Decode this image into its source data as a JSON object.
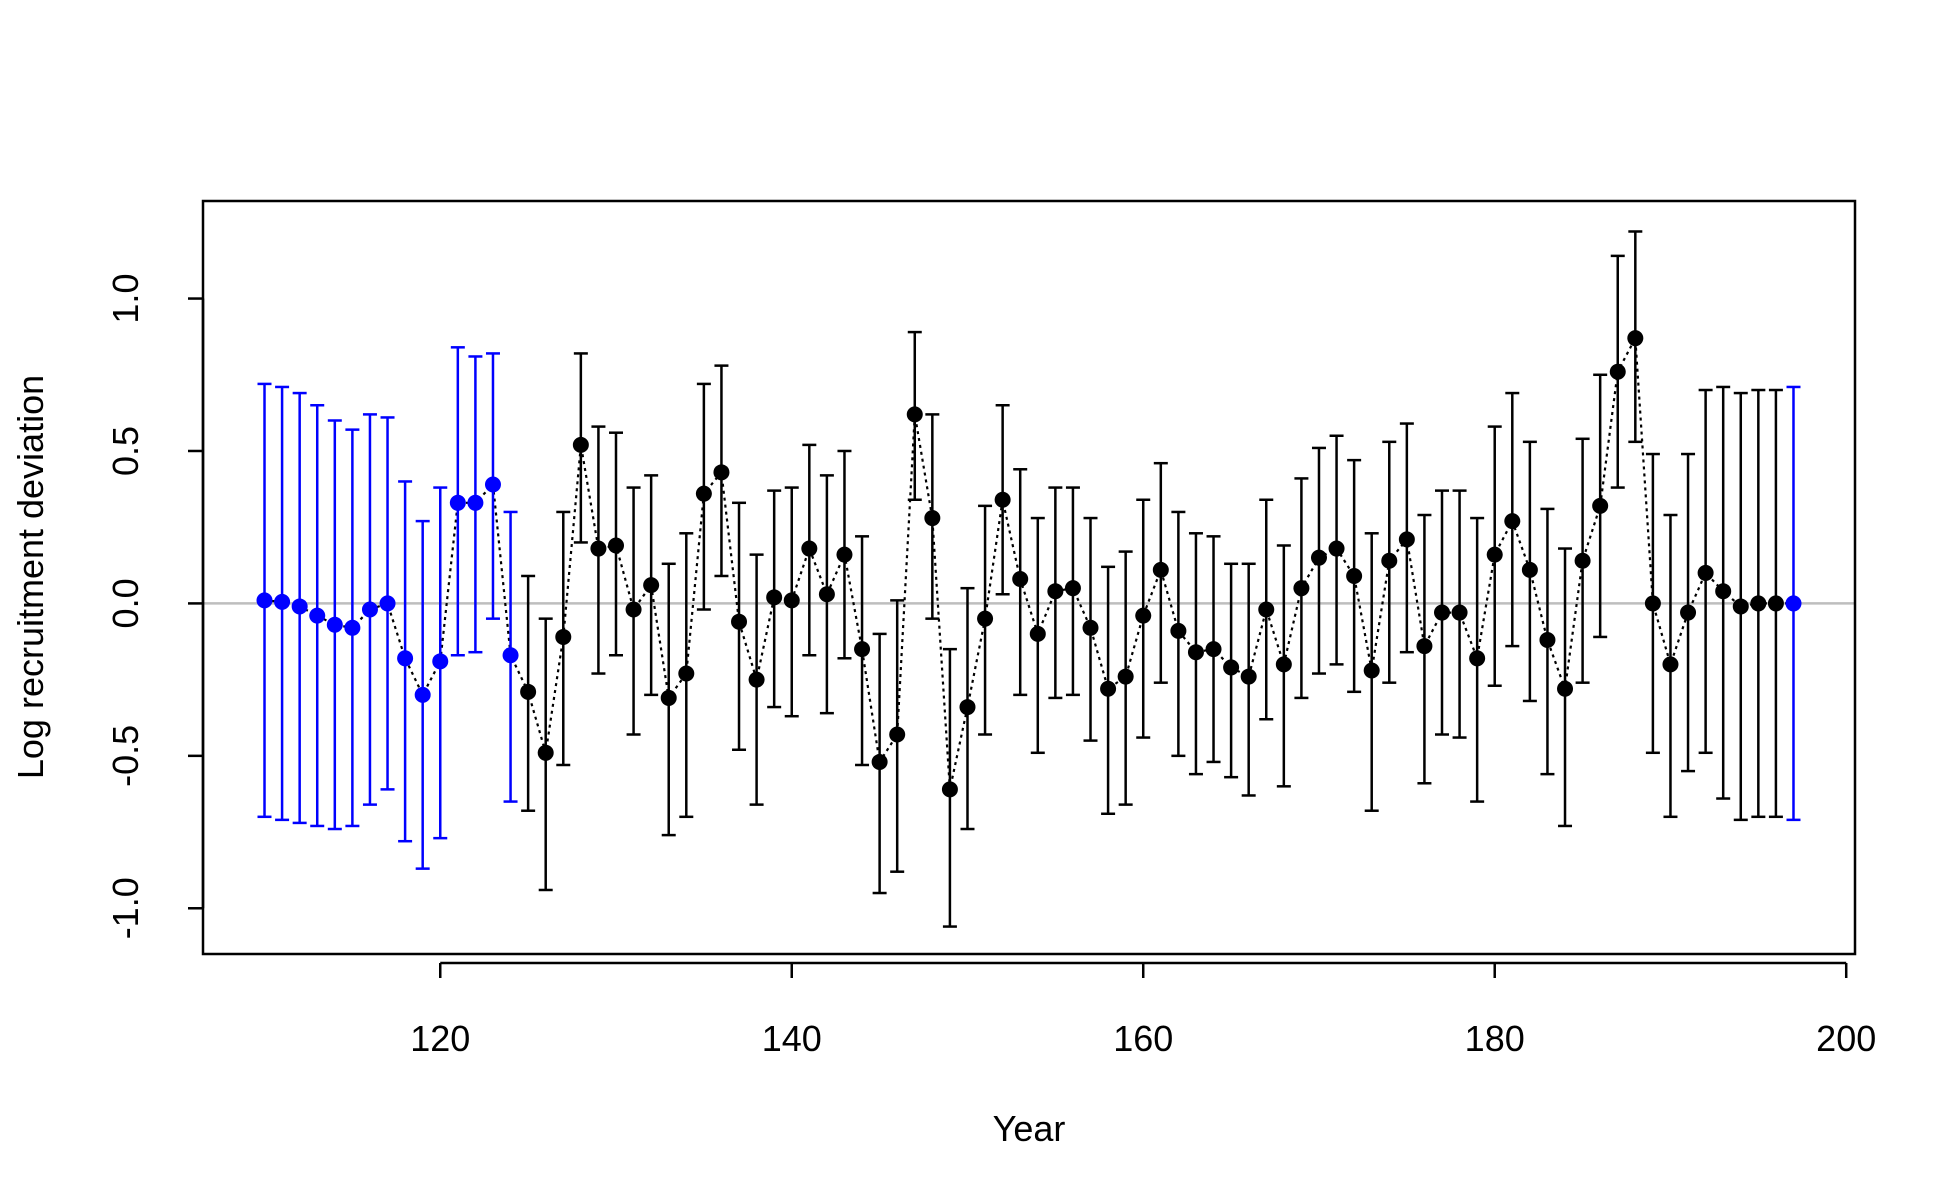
{
  "chart_data": {
    "type": "scatter",
    "xlabel": "Year",
    "ylabel": "Log recruitment deviation",
    "xlim": [
      106.5,
      200.5
    ],
    "ylim": [
      -1.15,
      1.32
    ],
    "x_ticks": [
      120,
      140,
      160,
      180,
      200
    ],
    "x_tick_labels": [
      "120",
      "140",
      "160",
      "180",
      "200"
    ],
    "y_ticks": [
      -1.0,
      -0.5,
      0.0,
      0.5,
      1.0
    ],
    "y_tick_labels": [
      "-1.0",
      "-0.5",
      "0.0",
      "0.5",
      "1.0"
    ],
    "reference_line": {
      "y": 0.0,
      "color": "#bebebe"
    },
    "grid": false,
    "colors": {
      "early": "#0000ff",
      "main": "#000000"
    },
    "series": [
      {
        "style": "points-with-error-bars",
        "color": "#0000ff",
        "x": [
          110,
          111,
          112,
          113,
          114,
          115,
          116,
          117,
          118,
          119,
          120,
          121,
          122,
          123,
          124
        ],
        "y": [
          0.01,
          0.005,
          -0.01,
          -0.04,
          -0.07,
          -0.08,
          -0.02,
          0.0,
          -0.18,
          -0.3,
          -0.19,
          0.33,
          0.33,
          0.39,
          -0.17
        ],
        "lower": [
          -0.7,
          -0.71,
          -0.72,
          -0.73,
          -0.74,
          -0.73,
          -0.66,
          -0.61,
          -0.78,
          -0.87,
          -0.77,
          -0.17,
          -0.16,
          -0.05,
          -0.65
        ],
        "upper": [
          0.72,
          0.71,
          0.69,
          0.65,
          0.6,
          0.57,
          0.62,
          0.61,
          0.4,
          0.27,
          0.38,
          0.84,
          0.81,
          0.82,
          0.3
        ]
      },
      {
        "style": "points-with-error-bars-dotted-line",
        "color": "#000000",
        "x": [
          125,
          126,
          127,
          128,
          129,
          130,
          131,
          132,
          133,
          134,
          135,
          136,
          137,
          138,
          139,
          140,
          141,
          142,
          143,
          144,
          145,
          146,
          147,
          148,
          149,
          150,
          151,
          152,
          153,
          154,
          155,
          156,
          157,
          158,
          159,
          160,
          161,
          162,
          163,
          164,
          165,
          166,
          167,
          168,
          169,
          170,
          171,
          172,
          173,
          174,
          175,
          176,
          177,
          178,
          179,
          180,
          181,
          182,
          183,
          184,
          185,
          186,
          187,
          188,
          189,
          190,
          191,
          192,
          193,
          194,
          195,
          196
        ],
        "y": [
          -0.29,
          -0.49,
          -0.11,
          0.52,
          0.18,
          0.19,
          -0.02,
          0.06,
          -0.31,
          -0.23,
          0.36,
          0.43,
          -0.06,
          -0.25,
          0.02,
          0.01,
          0.18,
          0.03,
          0.16,
          -0.15,
          -0.52,
          -0.43,
          0.62,
          0.28,
          -0.61,
          -0.34,
          -0.05,
          0.34,
          0.08,
          -0.1,
          0.04,
          0.05,
          -0.08,
          -0.28,
          -0.24,
          -0.04,
          0.11,
          -0.09,
          -0.16,
          -0.15,
          -0.21,
          -0.24,
          -0.02,
          -0.2,
          0.05,
          0.15,
          0.18,
          0.09,
          -0.22,
          0.14,
          0.21,
          -0.14,
          -0.03,
          -0.03,
          -0.18,
          0.16,
          0.27,
          0.11,
          -0.12,
          -0.28,
          0.14,
          0.32,
          0.76,
          0.87,
          0.0,
          -0.2,
          -0.03,
          0.1,
          0.04,
          -0.01,
          0.0,
          0.0
        ],
        "lower": [
          -0.68,
          -0.94,
          -0.53,
          0.2,
          -0.23,
          -0.17,
          -0.43,
          -0.3,
          -0.76,
          -0.7,
          -0.02,
          0.09,
          -0.48,
          -0.66,
          -0.34,
          -0.37,
          -0.17,
          -0.36,
          -0.18,
          -0.53,
          -0.95,
          -0.88,
          0.34,
          -0.05,
          -1.06,
          -0.74,
          -0.43,
          0.03,
          -0.3,
          -0.49,
          -0.31,
          -0.3,
          -0.45,
          -0.69,
          -0.66,
          -0.44,
          -0.26,
          -0.5,
          -0.56,
          -0.52,
          -0.57,
          -0.63,
          -0.38,
          -0.6,
          -0.31,
          -0.23,
          -0.2,
          -0.29,
          -0.68,
          -0.26,
          -0.16,
          -0.59,
          -0.43,
          -0.44,
          -0.65,
          -0.27,
          -0.14,
          -0.32,
          -0.56,
          -0.73,
          -0.26,
          -0.11,
          0.38,
          0.53,
          -0.49,
          -0.7,
          -0.55,
          -0.49,
          -0.64,
          -0.71,
          -0.7,
          -0.7
        ],
        "upper": [
          0.09,
          -0.05,
          0.3,
          0.82,
          0.58,
          0.56,
          0.38,
          0.42,
          0.13,
          0.23,
          0.72,
          0.78,
          0.33,
          0.16,
          0.37,
          0.38,
          0.52,
          0.42,
          0.5,
          0.22,
          -0.1,
          0.01,
          0.89,
          0.62,
          -0.15,
          0.05,
          0.32,
          0.65,
          0.44,
          0.28,
          0.38,
          0.38,
          0.28,
          0.12,
          0.17,
          0.34,
          0.46,
          0.3,
          0.23,
          0.22,
          0.13,
          0.13,
          0.34,
          0.19,
          0.41,
          0.51,
          0.55,
          0.47,
          0.23,
          0.53,
          0.59,
          0.29,
          0.37,
          0.37,
          0.28,
          0.58,
          0.69,
          0.53,
          0.31,
          0.18,
          0.54,
          0.75,
          1.14,
          1.22,
          0.49,
          0.29,
          0.49,
          0.7,
          0.71,
          0.69,
          0.7,
          0.7
        ]
      },
      {
        "style": "points-with-error-bars",
        "color": "#0000ff",
        "x": [
          197
        ],
        "y": [
          0.0
        ],
        "lower": [
          -0.71
        ],
        "upper": [
          0.71
        ]
      }
    ]
  }
}
